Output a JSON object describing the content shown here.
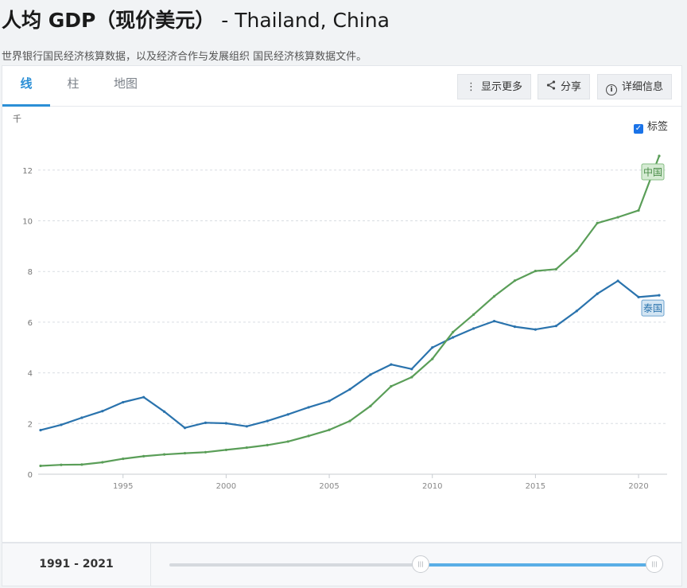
{
  "header": {
    "title": "人均 GDP（现价美元）",
    "countries": " - Thailand, China",
    "subtitle": "世界银行国民经济核算数据，以及经济合作与发展组织 国民经济核算数据文件。"
  },
  "tabs": [
    {
      "label": "线",
      "active": true
    },
    {
      "label": "柱",
      "active": false
    },
    {
      "label": "地图",
      "active": false
    }
  ],
  "toolbar": {
    "more_label": "显示更多",
    "share_label": "分享",
    "details_label": "详细信息"
  },
  "labels_toggle": {
    "label": "标签",
    "checked": true
  },
  "footer": {
    "range": "1991 - 2021"
  },
  "colors": {
    "thailand": "#2a73ad",
    "china": "#5a9e58",
    "accent": "#2b8fd6"
  },
  "chart_data": {
    "type": "line",
    "ylabel": "千",
    "ylim": [
      0,
      13
    ],
    "yticks": [
      "0",
      "2",
      "4",
      "6",
      "8",
      "10",
      "12"
    ],
    "xticks": [
      "1995",
      "2000",
      "2005",
      "2010",
      "2015",
      "2020"
    ],
    "x": [
      1991,
      1992,
      1993,
      1994,
      1995,
      1996,
      1997,
      1998,
      1999,
      2000,
      2001,
      2002,
      2003,
      2004,
      2005,
      2006,
      2007,
      2008,
      2009,
      2010,
      2011,
      2012,
      2013,
      2014,
      2015,
      2016,
      2017,
      2018,
      2019,
      2020,
      2021
    ],
    "series": [
      {
        "name": "泰国",
        "values": [
          1.74,
          1.95,
          2.23,
          2.49,
          2.84,
          3.04,
          2.47,
          1.83,
          2.03,
          2.01,
          1.89,
          2.1,
          2.36,
          2.64,
          2.89,
          3.35,
          3.93,
          4.33,
          4.15,
          5.0,
          5.4,
          5.75,
          6.04,
          5.82,
          5.71,
          5.85,
          6.44,
          7.12,
          7.63,
          6.99,
          7.06
        ]
      },
      {
        "name": "中国",
        "values": [
          0.33,
          0.37,
          0.38,
          0.47,
          0.61,
          0.71,
          0.78,
          0.83,
          0.87,
          0.96,
          1.05,
          1.15,
          1.29,
          1.51,
          1.75,
          2.1,
          2.69,
          3.47,
          3.83,
          4.55,
          5.61,
          6.3,
          7.02,
          7.64,
          8.02,
          8.09,
          8.82,
          9.91,
          10.14,
          10.41,
          12.56
        ]
      }
    ]
  }
}
